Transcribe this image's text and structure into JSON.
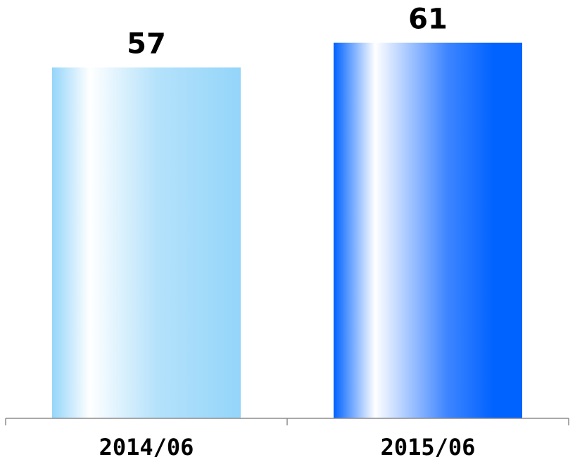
{
  "chart_data": {
    "type": "bar",
    "categories": [
      "2014/06",
      "2015/06"
    ],
    "values": [
      57,
      61
    ],
    "data_labels": [
      "57",
      "61"
    ],
    "title": "",
    "xlabel": "",
    "ylabel": "",
    "ylim": [
      0,
      66
    ],
    "grid": false,
    "legend": "none",
    "colors": [
      "#94d5fa",
      "#0062ff"
    ]
  }
}
